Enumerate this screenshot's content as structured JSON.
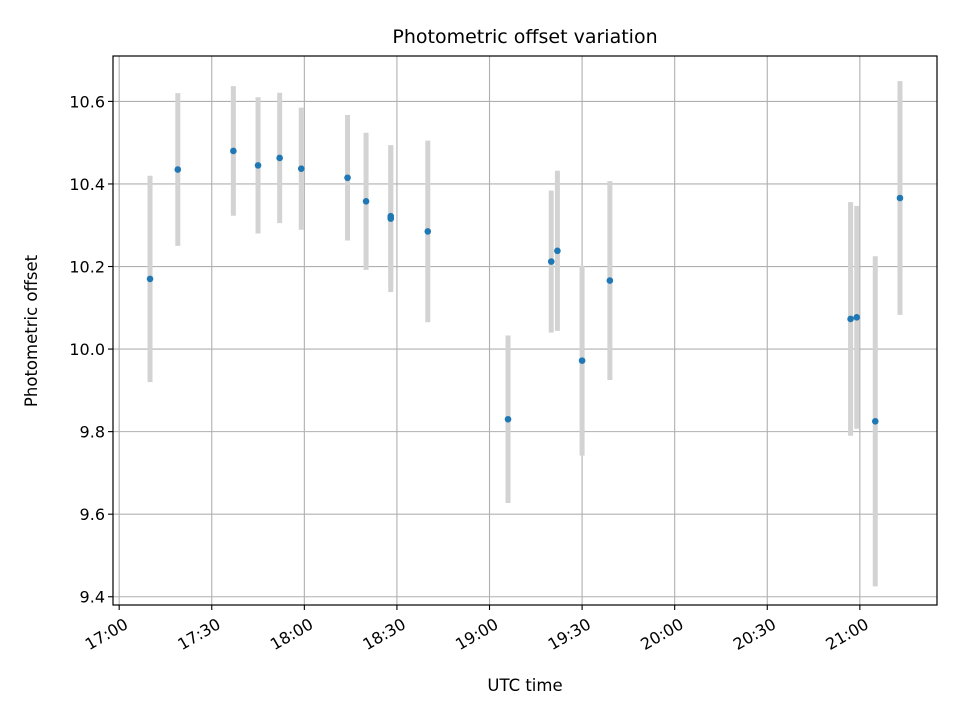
{
  "chart_data": {
    "type": "scatter",
    "title": "Photometric offset variation",
    "xlabel": "UTC time",
    "ylabel": "Photometric offset",
    "x_tick_labels": [
      "17:00",
      "17:30",
      "18:00",
      "18:30",
      "19:00",
      "19:30",
      "20:00",
      "20:30",
      "21:00"
    ],
    "y_tick_labels": [
      "9.4",
      "9.6",
      "9.8",
      "10.0",
      "10.2",
      "10.4",
      "10.6"
    ],
    "y_ticks": [
      9.4,
      9.6,
      9.8,
      10.0,
      10.2,
      10.4,
      10.6
    ],
    "xlim": [
      "16:58",
      "21:25"
    ],
    "ylim": [
      9.38,
      10.71
    ],
    "grid": true,
    "point_color": "#1f77b4",
    "errorbar_color": "#d3d3d3",
    "points": [
      {
        "x": "17:10",
        "y": 10.17,
        "err": 0.25
      },
      {
        "x": "17:19",
        "y": 10.435,
        "err": 0.185
      },
      {
        "x": "17:37",
        "y": 10.48,
        "err": 0.157
      },
      {
        "x": "17:45",
        "y": 10.445,
        "err": 0.165
      },
      {
        "x": "17:52",
        "y": 10.463,
        "err": 0.158
      },
      {
        "x": "17:59",
        "y": 10.437,
        "err": 0.148
      },
      {
        "x": "18:14",
        "y": 10.415,
        "err": 0.152
      },
      {
        "x": "18:20",
        "y": 10.358,
        "err": 0.166
      },
      {
        "x": "18:28",
        "y": 10.316,
        "err": 0.178
      },
      {
        "x": "18:28",
        "y": 10.322,
        "err": 0.171
      },
      {
        "x": "18:40",
        "y": 10.285,
        "err": 0.22
      },
      {
        "x": "19:06",
        "y": 9.83,
        "err": 0.203
      },
      {
        "x": "19:20",
        "y": 10.212,
        "err": 0.172
      },
      {
        "x": "19:22",
        "y": 10.238,
        "err": 0.194
      },
      {
        "x": "19:30",
        "y": 9.972,
        "err": 0.23
      },
      {
        "x": "19:39",
        "y": 10.166,
        "err": 0.241
      },
      {
        "x": "20:57",
        "y": 10.073,
        "err": 0.283
      },
      {
        "x": "20:59",
        "y": 10.077,
        "err": 0.27
      },
      {
        "x": "21:05",
        "y": 9.825,
        "err": 0.4
      },
      {
        "x": "21:13",
        "y": 10.366,
        "err": 0.283
      }
    ]
  }
}
